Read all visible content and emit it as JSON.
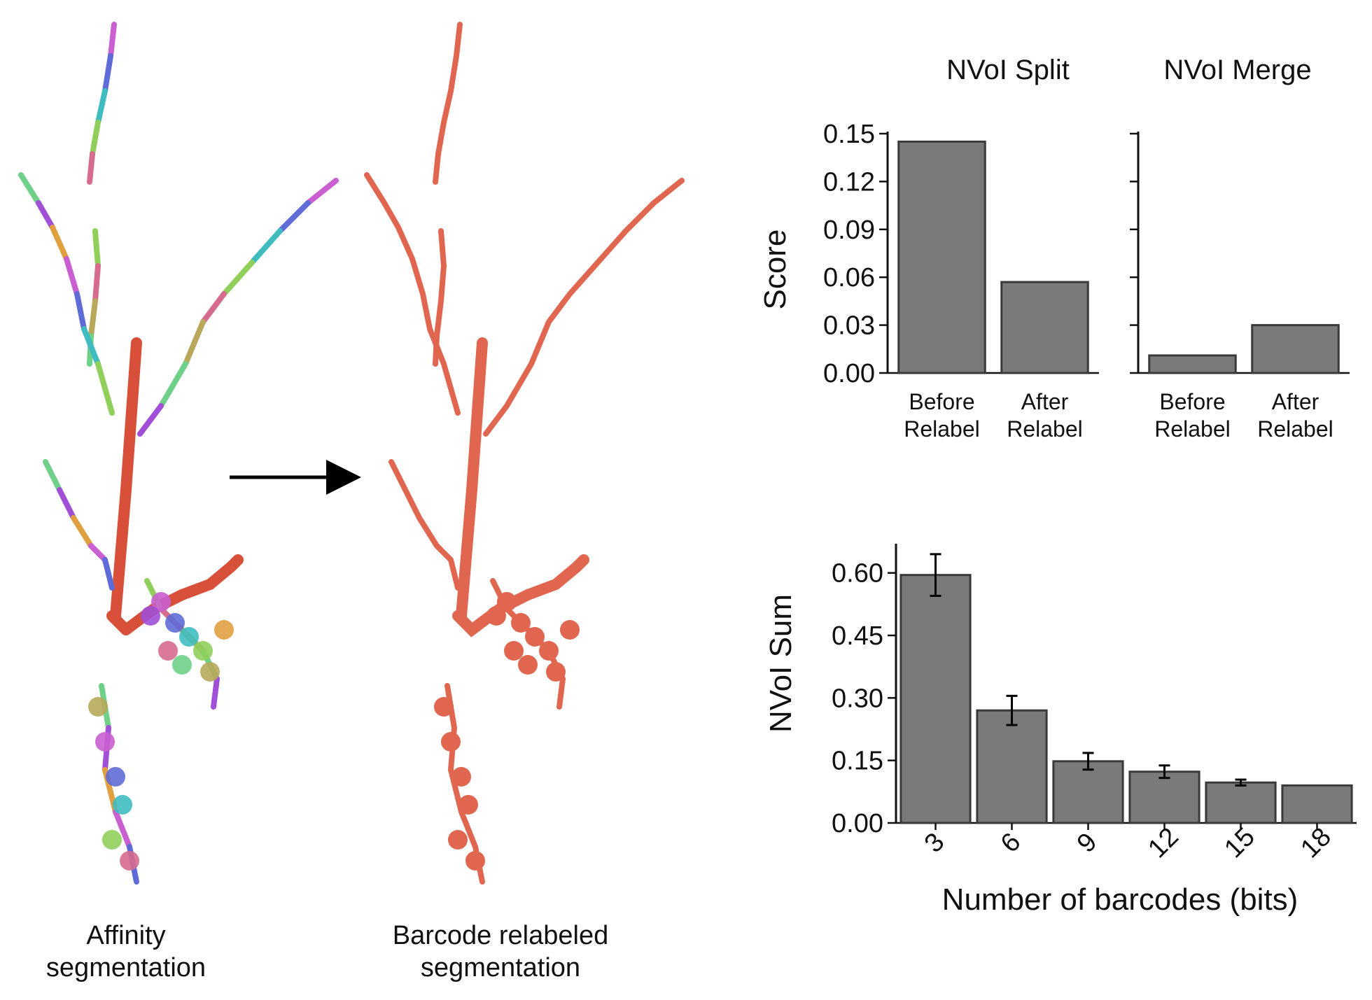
{
  "figure": {
    "left_panel": {
      "affinity_caption_line1": "Affinity",
      "affinity_caption_line2": "segmentation",
      "barcode_caption_line1": "Barcode relabeled",
      "barcode_caption_line2": "segmentation"
    },
    "colors": {
      "bar_fill": "#7a7a7a",
      "bar_stroke": "#3a3a3a",
      "relabeled_neuron": "#e0664f",
      "affinity_trunk": "#d9503a",
      "segment_palette": [
        "#c95fd0",
        "#5f6bd6",
        "#3fbcc0",
        "#8fcf5a",
        "#d66a8f",
        "#b7a85a",
        "#6fd08a",
        "#a04fd6",
        "#e0a040"
      ]
    }
  },
  "chart_data": [
    {
      "type": "bar",
      "title": "NVoI Split",
      "ylabel": "Score",
      "xlabel": "",
      "categories": [
        "Before Relabel",
        "After Relabel"
      ],
      "category_lines": [
        [
          "Before",
          "Relabel"
        ],
        [
          "After",
          "Relabel"
        ]
      ],
      "values": [
        0.145,
        0.057
      ],
      "ylim": [
        0,
        0.15
      ],
      "yticks": [
        "0.00",
        "0.03",
        "0.06",
        "0.09",
        "0.12",
        "0.15"
      ],
      "ytick_values": [
        0,
        0.03,
        0.06,
        0.09,
        0.12,
        0.15
      ],
      "grid": false
    },
    {
      "type": "bar",
      "title": "NVoI Merge",
      "ylabel": "",
      "xlabel": "",
      "categories": [
        "Before Relabel",
        "After Relabel"
      ],
      "category_lines": [
        [
          "Before",
          "Relabel"
        ],
        [
          "After",
          "Relabel"
        ]
      ],
      "values": [
        0.011,
        0.03
      ],
      "ylim": [
        0,
        0.15
      ],
      "ytick_values": [
        0,
        0.03,
        0.06,
        0.09,
        0.12,
        0.15
      ],
      "grid": false
    },
    {
      "type": "bar",
      "title": "",
      "ylabel": "NVoI Sum",
      "xlabel": "Number of barcodes (bits)",
      "categories": [
        "3",
        "6",
        "9",
        "12",
        "15",
        "18"
      ],
      "values": [
        0.595,
        0.27,
        0.148,
        0.123,
        0.097,
        0.09
      ],
      "errors": [
        0.05,
        0.035,
        0.02,
        0.015,
        0.007,
        0.0
      ],
      "ylim": [
        0,
        0.67
      ],
      "yticks": [
        "0.00",
        "0.15",
        "0.30",
        "0.45",
        "0.60"
      ],
      "ytick_values": [
        0,
        0.15,
        0.3,
        0.45,
        0.6
      ],
      "grid": false
    }
  ]
}
